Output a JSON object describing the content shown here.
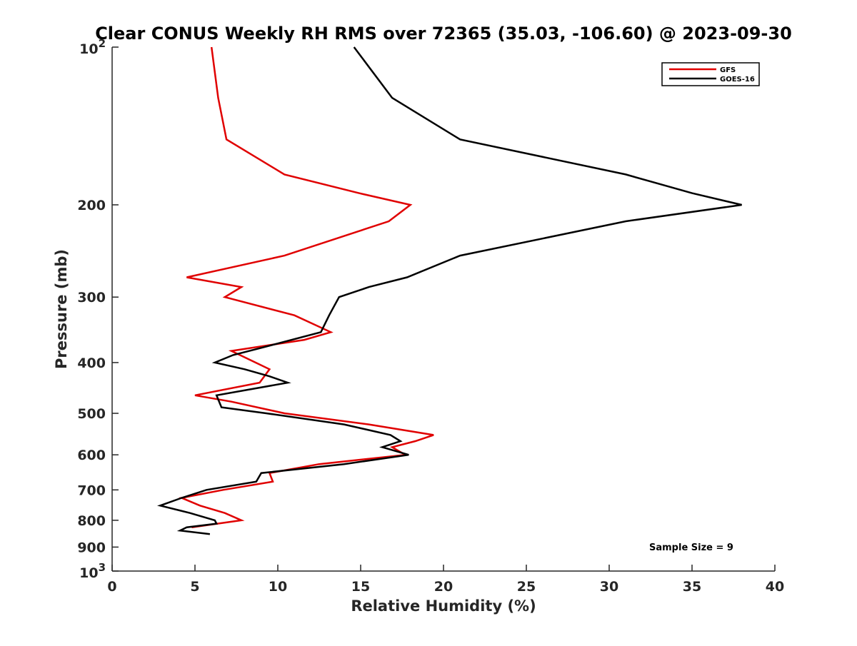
{
  "chart_data": {
    "type": "line",
    "title": "Clear CONUS Weekly RH RMS over 72365 (35.03, -106.60) @ 2023-09-30",
    "xlabel": "Relative Humidity (%)",
    "ylabel": "Pressure (mb)",
    "xlim": [
      0,
      40
    ],
    "ylim": [
      100,
      1000
    ],
    "y_scale": "log",
    "y_reversed": true,
    "grid": false,
    "legend_position": "top-right",
    "x_ticks": [
      0,
      5,
      10,
      15,
      20,
      25,
      30,
      35,
      40
    ],
    "y_ticks": [
      {
        "value": 100,
        "base": "10",
        "exp": "2"
      },
      {
        "value": 200,
        "label": "200"
      },
      {
        "value": 300,
        "label": "300"
      },
      {
        "value": 400,
        "label": "400"
      },
      {
        "value": 500,
        "label": "500"
      },
      {
        "value": 600,
        "label": "600"
      },
      {
        "value": 700,
        "label": "700"
      },
      {
        "value": 800,
        "label": "800"
      },
      {
        "value": 900,
        "label": "900"
      },
      {
        "value": 1000,
        "base": "10",
        "exp": "3"
      }
    ],
    "annotation": "Sample Size = 9",
    "series": [
      {
        "name": "GFS",
        "color": "#e00000",
        "points": [
          [
            6.0,
            100
          ],
          [
            6.4,
            125
          ],
          [
            6.9,
            150
          ],
          [
            10.4,
            175
          ],
          [
            14.9,
            190
          ],
          [
            18.0,
            200
          ],
          [
            16.7,
            215
          ],
          [
            10.4,
            250
          ],
          [
            4.5,
            275
          ],
          [
            7.8,
            287
          ],
          [
            6.8,
            300
          ],
          [
            11.0,
            325
          ],
          [
            13.2,
            350
          ],
          [
            11.6,
            362
          ],
          [
            7.2,
            380
          ],
          [
            9.5,
            412
          ],
          [
            8.9,
            437
          ],
          [
            5.0,
            462
          ],
          [
            7.2,
            475
          ],
          [
            10.4,
            500
          ],
          [
            15.5,
            525
          ],
          [
            19.4,
            550
          ],
          [
            18.3,
            565
          ],
          [
            16.9,
            580
          ],
          [
            17.7,
            600
          ],
          [
            12.5,
            625
          ],
          [
            9.5,
            650
          ],
          [
            9.7,
            675
          ],
          [
            6.7,
            700
          ],
          [
            4.2,
            725
          ],
          [
            5.3,
            750
          ],
          [
            6.8,
            775
          ],
          [
            7.8,
            800
          ],
          [
            4.8,
            825
          ]
        ]
      },
      {
        "name": "GOES-16",
        "color": "#000000",
        "points": [
          [
            14.6,
            100
          ],
          [
            16.9,
            125
          ],
          [
            21.0,
            150
          ],
          [
            31.0,
            175
          ],
          [
            35.0,
            190
          ],
          [
            38.0,
            200
          ],
          [
            31.0,
            215
          ],
          [
            21.0,
            250
          ],
          [
            17.8,
            275
          ],
          [
            15.5,
            287
          ],
          [
            13.7,
            300
          ],
          [
            13.1,
            325
          ],
          [
            12.6,
            350
          ],
          [
            9.0,
            375
          ],
          [
            7.3,
            387
          ],
          [
            6.2,
            400
          ],
          [
            8.0,
            412
          ],
          [
            9.5,
            425
          ],
          [
            10.6,
            437
          ],
          [
            6.3,
            462
          ],
          [
            6.6,
            487
          ],
          [
            9.3,
            500
          ],
          [
            14.0,
            525
          ],
          [
            16.8,
            550
          ],
          [
            17.4,
            565
          ],
          [
            16.3,
            580
          ],
          [
            17.9,
            600
          ],
          [
            14.0,
            625
          ],
          [
            9.0,
            650
          ],
          [
            8.7,
            675
          ],
          [
            5.7,
            700
          ],
          [
            4.2,
            725
          ],
          [
            2.9,
            750
          ],
          [
            4.7,
            775
          ],
          [
            6.2,
            800
          ],
          [
            6.3,
            812
          ],
          [
            4.5,
            825
          ],
          [
            4.1,
            837
          ],
          [
            5.9,
            850
          ]
        ]
      }
    ]
  }
}
